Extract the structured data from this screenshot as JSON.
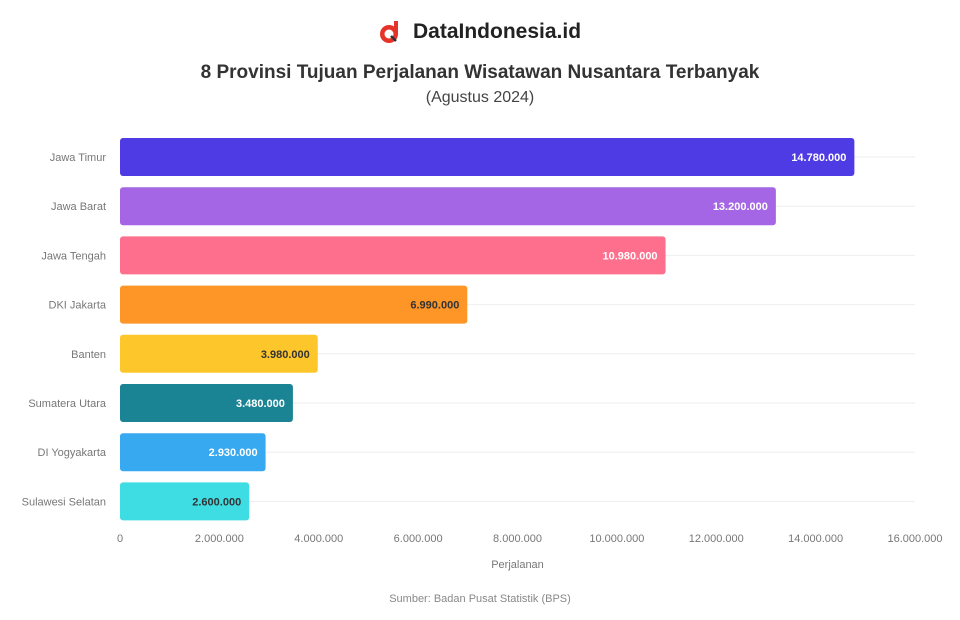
{
  "brand": {
    "name": "DataIndonesia.id",
    "logo_icon": "dataindonesia-logo-icon",
    "logo_color": "#e5332a"
  },
  "source": "Sumber: Badan Pusat Statistik (BPS)",
  "chart_data": {
    "type": "bar",
    "orientation": "horizontal",
    "title": "8 Provinsi Tujuan Perjalanan Wisatawan Nusantara Terbanyak",
    "subtitle": "(Agustus 2024)",
    "categories": [
      "Jawa Timur",
      "Jawa Barat",
      "Jawa Tengah",
      "DKI Jakarta",
      "Banten",
      "Sumatera Utara",
      "DI Yogyakarta",
      "Sulawesi Selatan"
    ],
    "values": [
      14780000,
      13200000,
      10980000,
      6990000,
      3980000,
      3480000,
      2930000,
      2600000
    ],
    "value_labels": [
      "14.780.000",
      "13.200.000",
      "10.980.000",
      "6.990.000",
      "3.980.000",
      "3.480.000",
      "2.930.000",
      "2.600.000"
    ],
    "colors": [
      "#4f3be4",
      "#a466e4",
      "#fd6f8c",
      "#fd9527",
      "#fdc72c",
      "#1b8494",
      "#36a9f0",
      "#3edde4"
    ],
    "label_colors": [
      "#ffffff",
      "#ffffff",
      "#ffffff",
      "#333333",
      "#333333",
      "#ffffff",
      "#ffffff",
      "#333333"
    ],
    "xlim": [
      0,
      16000000
    ],
    "xticks": [
      0,
      2000000,
      4000000,
      6000000,
      8000000,
      10000000,
      12000000,
      14000000,
      16000000
    ],
    "xtick_labels": [
      "0",
      "2.000.000",
      "4.000.000",
      "6.000.000",
      "8.000.000",
      "10.000.000",
      "12.000.000",
      "14.000.000",
      "16.000.000"
    ],
    "xlabel": "Perjalanan",
    "ylabel": "",
    "grid": true,
    "legend": "none"
  }
}
